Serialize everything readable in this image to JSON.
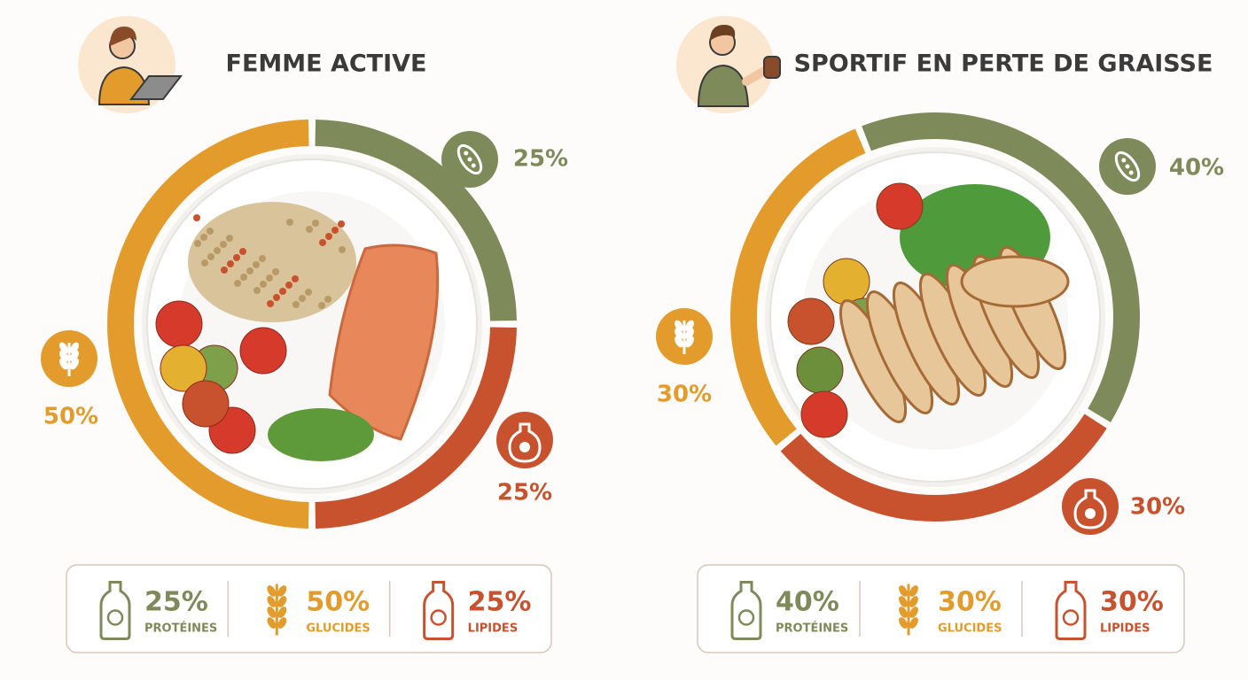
{
  "chart_data": [
    {
      "type": "donut",
      "title": "FEMME ACTIVE",
      "categories": [
        "PROTÉINES",
        "GLUCIDES",
        "LIPIDES"
      ],
      "values": [
        25,
        50,
        25
      ],
      "value_labels": [
        "25%",
        "50%",
        "25%"
      ],
      "colors": [
        "#7f8a5a",
        "#e39b2b",
        "#c9522e"
      ]
    },
    {
      "type": "donut",
      "title": "SPORTIF EN PERTE DE GRAISSE",
      "categories": [
        "PROTÉINES",
        "GLUCIDES",
        "LIPIDES"
      ],
      "values": [
        40,
        30,
        30
      ],
      "value_labels": [
        "40%",
        "30%",
        "30%"
      ],
      "colors": [
        "#7f8a5a",
        "#e39b2b",
        "#c9522e"
      ]
    }
  ]
}
